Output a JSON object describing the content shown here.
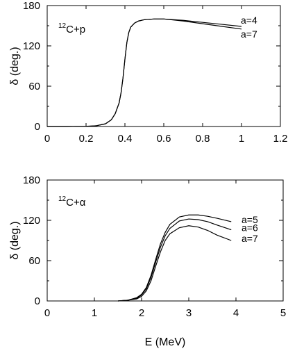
{
  "chart_data": [
    {
      "type": "line",
      "system_label": {
        "sup": "12",
        "text": "C+p"
      },
      "ylabel": "δ (deg.)",
      "xlabel": "",
      "xlim": [
        0,
        1.2
      ],
      "ylim": [
        0,
        180
      ],
      "xticks": [
        "0",
        "0.2",
        "0.4",
        "0.6",
        "0.8",
        "1",
        "1.2"
      ],
      "xtick_values": [
        0,
        0.2,
        0.4,
        0.6,
        0.8,
        1.0,
        1.2
      ],
      "yticks": [
        "0",
        "60",
        "120",
        "180"
      ],
      "ytick_values": [
        0,
        60,
        120,
        180
      ],
      "yminor": [
        30,
        90,
        150
      ],
      "series": [
        {
          "name": "a=4",
          "x": [
            0.0,
            0.1,
            0.2,
            0.25,
            0.3,
            0.33,
            0.35,
            0.37,
            0.38,
            0.39,
            0.4,
            0.41,
            0.42,
            0.43,
            0.45,
            0.47,
            0.5,
            0.55,
            0.6,
            0.7,
            0.8,
            0.9,
            1.0
          ],
          "y": [
            0,
            0,
            0.3,
            1,
            4,
            10,
            19,
            35,
            50,
            72,
            100,
            125,
            140,
            148,
            154,
            157,
            159,
            160,
            160,
            158,
            155,
            152,
            149
          ]
        },
        {
          "name": "a=7",
          "x": [
            0.0,
            0.1,
            0.2,
            0.25,
            0.3,
            0.33,
            0.35,
            0.37,
            0.38,
            0.39,
            0.4,
            0.41,
            0.42,
            0.43,
            0.45,
            0.47,
            0.5,
            0.55,
            0.6,
            0.7,
            0.8,
            0.9,
            1.0
          ],
          "y": [
            0,
            0,
            0.3,
            1,
            4,
            10,
            19,
            35,
            50,
            72,
            100,
            125,
            140,
            148,
            154,
            157,
            159,
            160,
            160,
            157,
            153,
            149,
            145
          ]
        }
      ]
    },
    {
      "type": "line",
      "system_label": {
        "sup": "12",
        "text": "C+α"
      },
      "ylabel": "δ (deg.)",
      "xlabel": "E (MeV)",
      "xlim": [
        0,
        5
      ],
      "ylim": [
        0,
        180
      ],
      "xticks": [
        "0",
        "1",
        "2",
        "3",
        "4",
        "5"
      ],
      "xtick_values": [
        0,
        1,
        2,
        3,
        4,
        5
      ],
      "yticks": [
        "0",
        "60",
        "120",
        "180"
      ],
      "ytick_values": [
        0,
        60,
        120,
        180
      ],
      "yminor": [
        30,
        90,
        150
      ],
      "series": [
        {
          "name": "a=5",
          "x": [
            1.5,
            1.7,
            1.9,
            2.0,
            2.1,
            2.2,
            2.3,
            2.4,
            2.5,
            2.6,
            2.8,
            3.0,
            3.2,
            3.4,
            3.6,
            3.9
          ],
          "y": [
            0,
            1,
            5,
            10,
            20,
            38,
            62,
            85,
            102,
            114,
            125,
            128,
            128,
            126,
            123,
            118
          ]
        },
        {
          "name": "a=6",
          "x": [
            1.5,
            1.7,
            1.9,
            2.0,
            2.1,
            2.2,
            2.3,
            2.4,
            2.5,
            2.6,
            2.8,
            3.0,
            3.2,
            3.4,
            3.6,
            3.9
          ],
          "y": [
            0,
            1,
            4,
            9,
            18,
            35,
            58,
            80,
            97,
            108,
            119,
            122,
            121,
            118,
            113,
            106
          ]
        },
        {
          "name": "a=7",
          "x": [
            1.5,
            1.7,
            1.9,
            2.0,
            2.1,
            2.2,
            2.3,
            2.4,
            2.5,
            2.6,
            2.8,
            3.0,
            3.2,
            3.4,
            3.6,
            3.9
          ],
          "y": [
            0,
            1,
            3,
            7,
            15,
            30,
            52,
            73,
            90,
            100,
            109,
            112,
            110,
            105,
            98,
            90
          ]
        }
      ]
    }
  ]
}
